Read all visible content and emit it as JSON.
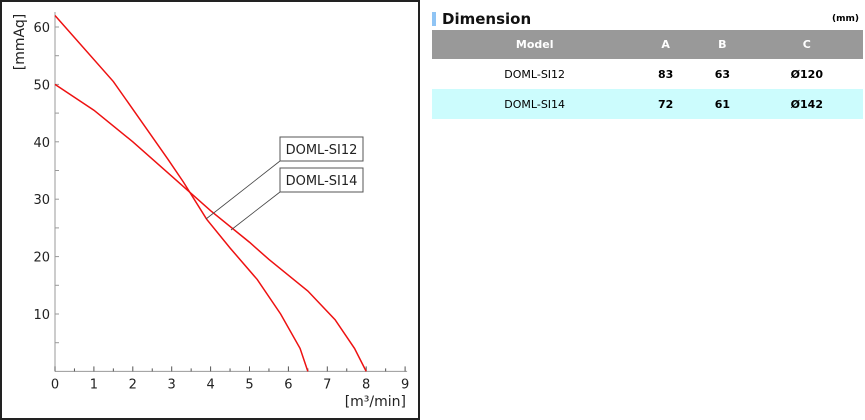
{
  "chart_data": {
    "type": "line",
    "xlabel": "[m³/min]",
    "ylabel": "[mmAq]",
    "xlim": [
      0,
      9
    ],
    "ylim": [
      0,
      62
    ],
    "xticks": [
      0,
      1,
      2,
      3,
      4,
      5,
      6,
      7,
      8,
      9
    ],
    "yticks": [
      10,
      20,
      30,
      40,
      50,
      60
    ],
    "color": "#ee1111",
    "series": [
      {
        "name": "DOML-SI12",
        "points": [
          [
            0,
            62
          ],
          [
            1.5,
            50.5
          ],
          [
            2.9,
            37
          ],
          [
            3.3,
            33
          ],
          [
            3.9,
            26.5
          ],
          [
            4.5,
            21.5
          ],
          [
            5.2,
            16
          ],
          [
            5.8,
            10
          ],
          [
            6.3,
            4
          ],
          [
            6.5,
            0
          ]
        ]
      },
      {
        "name": "DOML-SI14",
        "points": [
          [
            0,
            50
          ],
          [
            1,
            45.5
          ],
          [
            2,
            40
          ],
          [
            3,
            34
          ],
          [
            3.5,
            31
          ],
          [
            4,
            28
          ],
          [
            5,
            22.5
          ],
          [
            5.5,
            19.5
          ],
          [
            6.5,
            14
          ],
          [
            7.2,
            9
          ],
          [
            7.7,
            4
          ],
          [
            8,
            0
          ]
        ]
      }
    ]
  },
  "dimension": {
    "title": "Dimension",
    "unit": "(mm)",
    "headers": [
      "Model",
      "A",
      "B",
      "C"
    ],
    "rows": [
      [
        "DOML-SI12",
        "83",
        "63",
        "Ø120"
      ],
      [
        "DOML-SI14",
        "72",
        "61",
        "Ø142"
      ]
    ]
  }
}
